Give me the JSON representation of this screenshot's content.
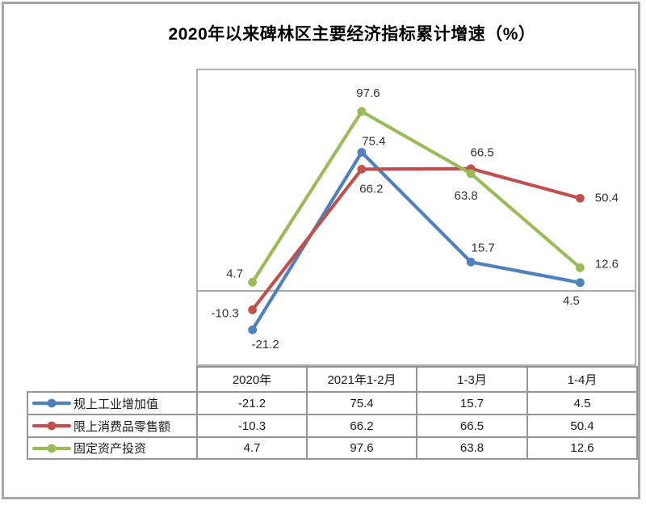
{
  "title": "2020年以来碑林区主要经济指标累计增速（%）",
  "chart_data": {
    "type": "line",
    "title": "2020年以来碑林区主要经济指标累计增速（%）",
    "categories": [
      "2020年",
      "2021年1-2月",
      "1-3月",
      "1-4月"
    ],
    "series": [
      {
        "name": "规上工业增加值",
        "color": "#4F81BD",
        "values": [
          -21.2,
          75.4,
          15.7,
          4.5
        ]
      },
      {
        "name": "限上消费品零售额",
        "color": "#C0504D",
        "values": [
          -10.3,
          66.2,
          66.5,
          50.4
        ]
      },
      {
        "name": "固定资产投资",
        "color": "#9BBB59",
        "values": [
          4.7,
          97.6,
          63.8,
          12.6
        ]
      }
    ],
    "ylim": [
      -40,
      120
    ],
    "grid": false,
    "axis_line_value": 0,
    "data_labels": true,
    "legend_position": "table-left"
  },
  "colors": {
    "series_blue": "#4F81BD",
    "series_red": "#C0504D",
    "series_green": "#9BBB59",
    "frame_border": "#a6a6a6",
    "table_border": "#959595",
    "axis_line": "#8c8c8c",
    "label_text": "#333333"
  }
}
